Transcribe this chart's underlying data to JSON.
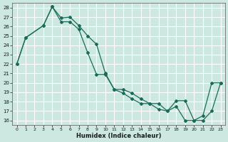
{
  "xlabel": "Humidex (Indice chaleur)",
  "background_color": "#cce8e0",
  "grid_color": "#ffffff",
  "line_color": "#1a6b5a",
  "xlim": [
    -0.5,
    23.5
  ],
  "ylim": [
    15.5,
    28.5
  ],
  "xticks": [
    0,
    1,
    2,
    3,
    4,
    5,
    6,
    7,
    8,
    9,
    10,
    11,
    12,
    13,
    14,
    15,
    16,
    17,
    18,
    19,
    20,
    21,
    22,
    23
  ],
  "yticks": [
    16,
    17,
    18,
    19,
    20,
    21,
    22,
    23,
    24,
    25,
    26,
    27,
    28
  ],
  "series1_x": [
    0,
    1,
    3,
    4,
    5,
    6,
    7,
    8,
    9,
    10,
    11,
    12,
    13,
    14,
    15,
    16,
    17,
    18,
    19,
    20,
    21,
    22,
    23
  ],
  "series1_y": [
    22,
    24.8,
    26.1,
    28.1,
    26.9,
    27.0,
    26.1,
    25.0,
    24.1,
    21.0,
    19.3,
    19.3,
    18.9,
    18.3,
    17.8,
    17.8,
    17.0,
    18.1,
    18.1,
    16.0,
    16.0,
    17.0,
    20.0
  ],
  "series2_x": [
    0,
    1,
    3,
    4,
    5,
    6,
    7,
    8,
    9,
    10,
    11,
    12,
    13,
    14,
    15,
    16,
    17,
    18,
    19,
    20,
    21,
    22,
    23
  ],
  "series2_y": [
    22,
    24.8,
    26.1,
    28.1,
    26.5,
    26.5,
    25.7,
    23.2,
    20.9,
    20.9,
    19.3,
    18.9,
    18.3,
    17.8,
    17.8,
    17.2,
    17.0,
    17.5,
    16.0,
    16.0,
    16.5,
    20.0,
    20.0
  ]
}
